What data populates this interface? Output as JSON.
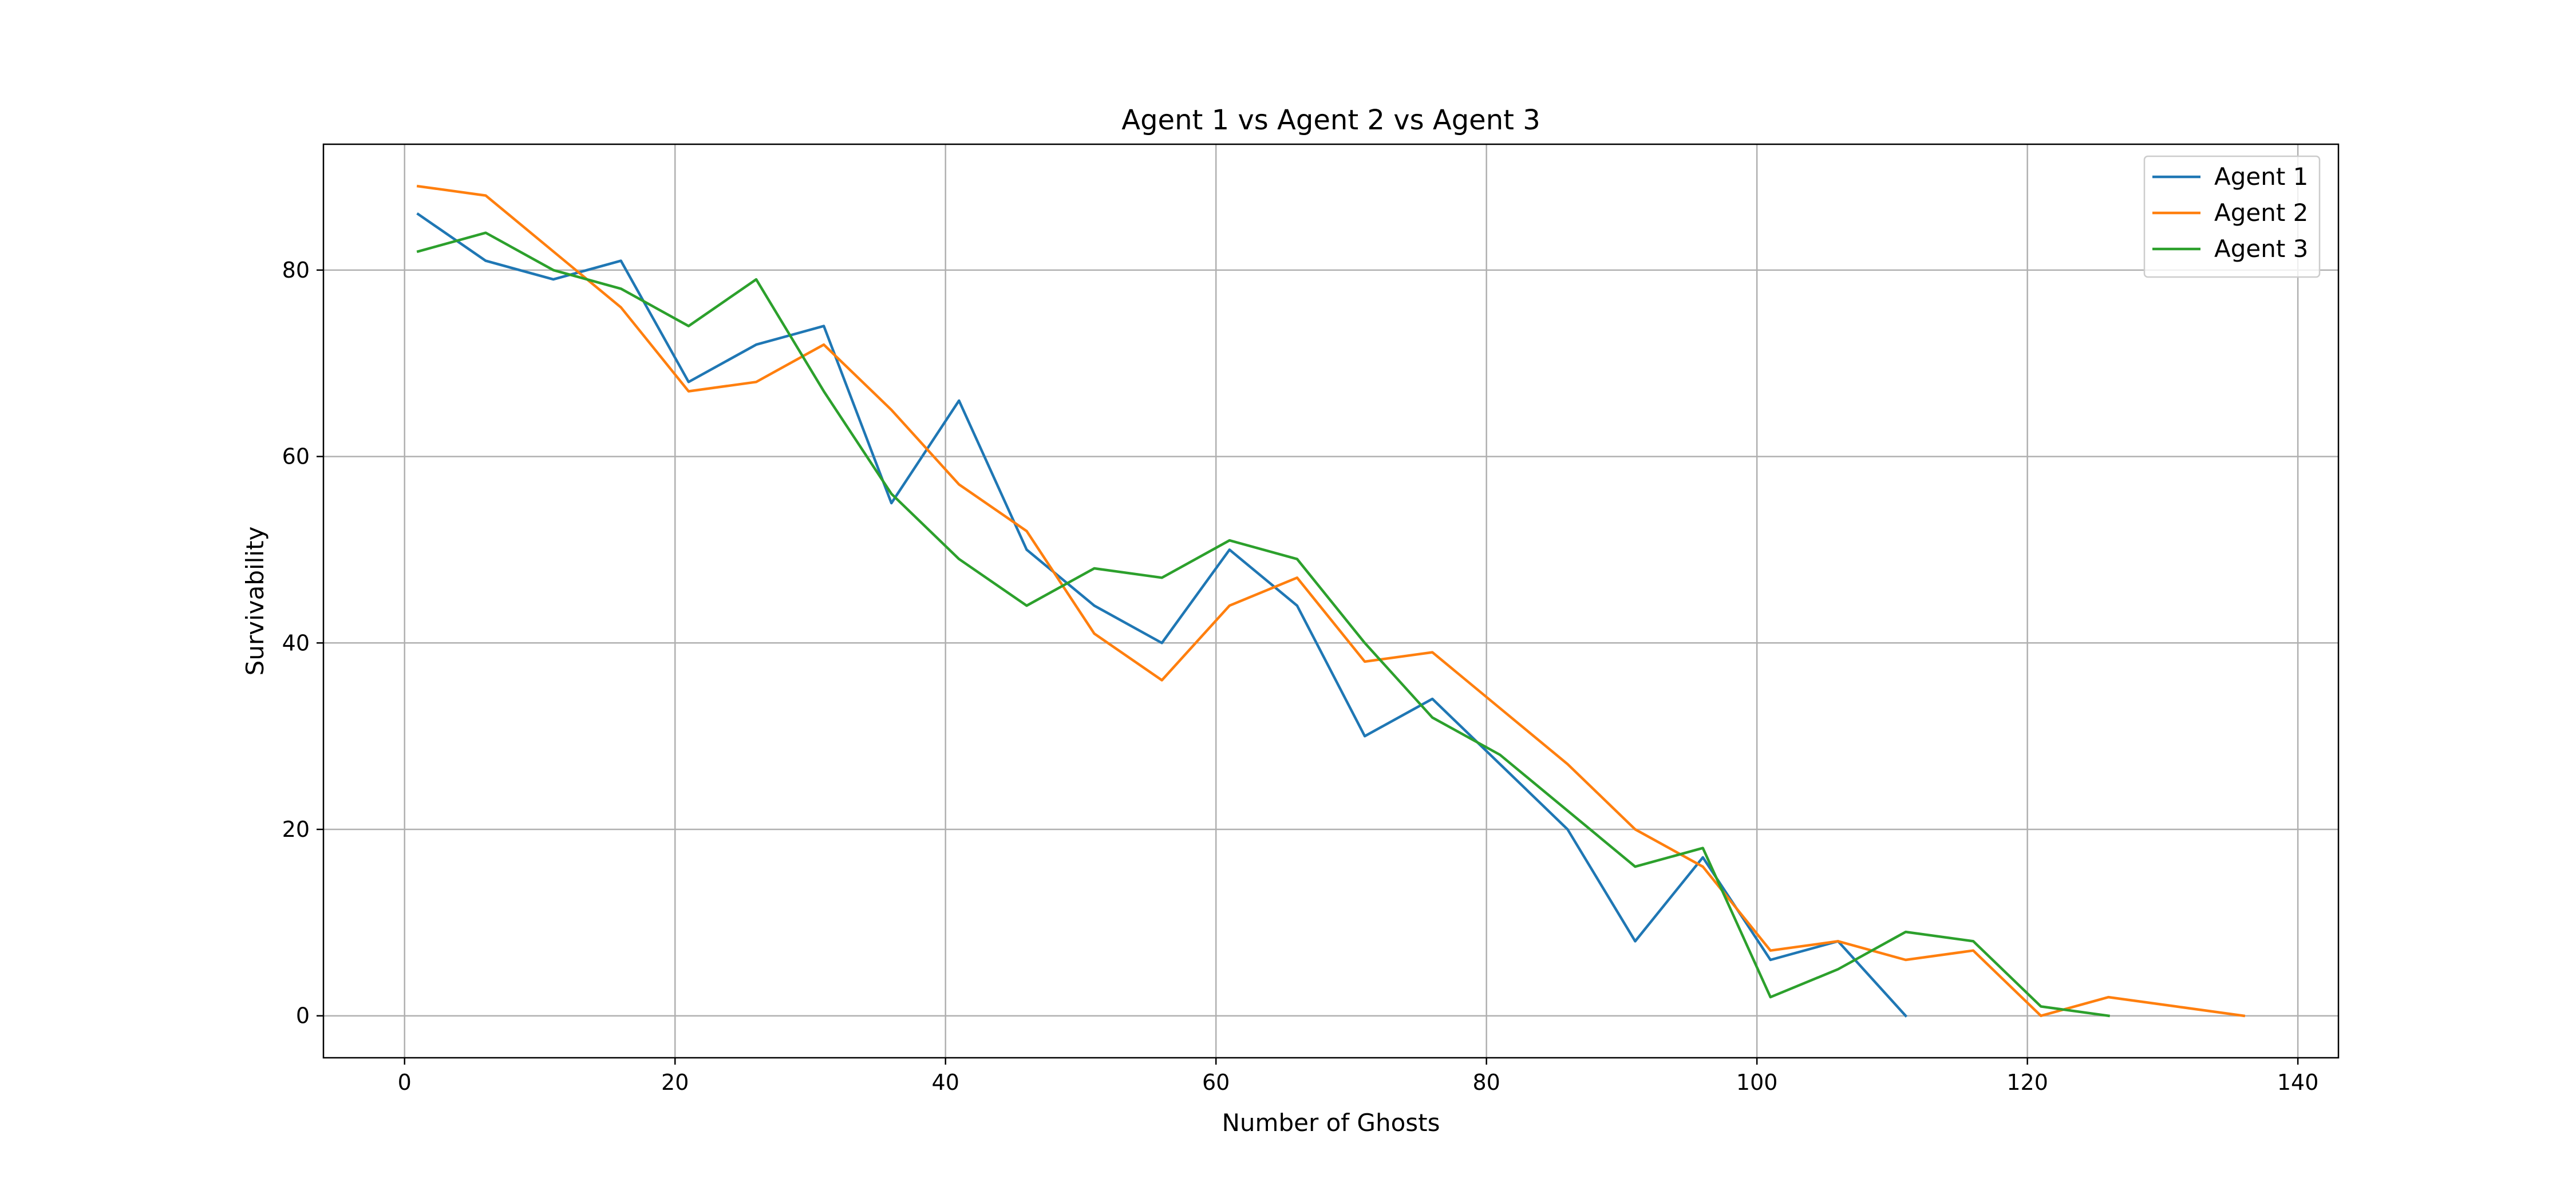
{
  "chart_data": {
    "type": "line",
    "title": "Agent 1 vs Agent 2 vs Agent 3",
    "xlabel": "Number of Ghosts",
    "ylabel": "Survivability",
    "xlim": [
      -6,
      143
    ],
    "ylim": [
      -4.5,
      93.5
    ],
    "xticks": [
      0,
      20,
      40,
      60,
      80,
      100,
      120,
      140
    ],
    "yticks": [
      0,
      20,
      40,
      60,
      80
    ],
    "grid": true,
    "legend_position": "top-right",
    "series": [
      {
        "name": "Agent 1",
        "color": "#1f77b4",
        "x": [
          1,
          6,
          11,
          16,
          21,
          26,
          31,
          36,
          41,
          46,
          51,
          56,
          61,
          66,
          71,
          76,
          81,
          86,
          91,
          96,
          101,
          106,
          111
        ],
        "y": [
          86,
          81,
          79,
          81,
          68,
          72,
          74,
          55,
          66,
          50,
          44,
          40,
          50,
          44,
          30,
          34,
          27,
          20,
          8,
          17,
          6,
          8,
          0
        ]
      },
      {
        "name": "Agent 2",
        "color": "#ff7f0e",
        "x": [
          1,
          6,
          11,
          16,
          21,
          26,
          31,
          36,
          41,
          46,
          51,
          56,
          61,
          66,
          71,
          76,
          81,
          86,
          91,
          96,
          101,
          106,
          111,
          116,
          121,
          126,
          131,
          136
        ],
        "y": [
          89,
          88,
          82,
          76,
          67,
          68,
          72,
          65,
          57,
          52,
          41,
          36,
          44,
          47,
          38,
          39,
          33,
          27,
          20,
          16,
          7,
          8,
          6,
          7,
          0,
          2,
          1,
          0
        ]
      },
      {
        "name": "Agent 3",
        "color": "#2ca02c",
        "x": [
          1,
          6,
          11,
          16,
          21,
          26,
          31,
          36,
          41,
          46,
          51,
          56,
          61,
          66,
          71,
          76,
          81,
          86,
          91,
          96,
          101,
          106,
          111,
          116,
          121,
          126
        ],
        "y": [
          82,
          84,
          80,
          78,
          74,
          79,
          67,
          56,
          49,
          44,
          48,
          47,
          51,
          49,
          40,
          32,
          28,
          22,
          16,
          18,
          2,
          5,
          9,
          8,
          1,
          0
        ]
      }
    ]
  }
}
